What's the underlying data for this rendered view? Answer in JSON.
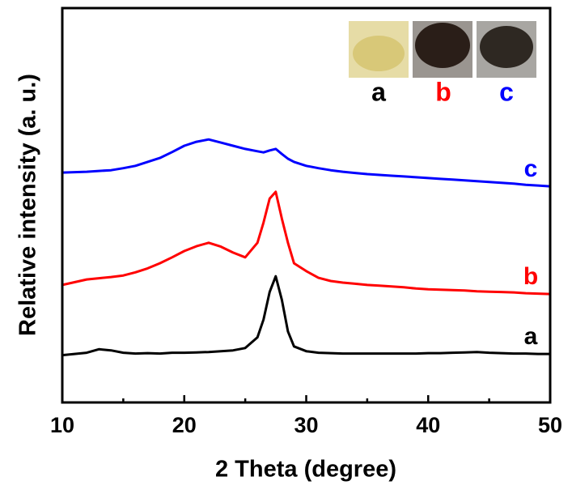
{
  "chart_data": {
    "type": "line",
    "xlabel": "2 Theta (degree)",
    "ylabel": "Relative intensity (a. u.)",
    "x": [
      10,
      11,
      12,
      13,
      14,
      15,
      16,
      17,
      18,
      19,
      20,
      21,
      22,
      23,
      24,
      25,
      26,
      26.5,
      27,
      27.5,
      28,
      28.5,
      29,
      30,
      31,
      32,
      33,
      34,
      35,
      36,
      37,
      38,
      39,
      40,
      41,
      42,
      43,
      44,
      45,
      46,
      47,
      48,
      49,
      50
    ],
    "series": [
      {
        "name": "a",
        "color": "#000000",
        "values": [
          12.0,
          12.3,
          12.6,
          13.5,
          13.2,
          12.6,
          12.4,
          12.5,
          12.4,
          12.6,
          12.6,
          12.7,
          12.8,
          13.0,
          13.2,
          13.8,
          16.5,
          21,
          28,
          32,
          26,
          18,
          14.2,
          13.0,
          12.6,
          12.5,
          12.4,
          12.4,
          12.4,
          12.4,
          12.4,
          12.4,
          12.4,
          12.5,
          12.5,
          12.6,
          12.7,
          12.8,
          12.6,
          12.5,
          12.4,
          12.4,
          12.3,
          12.3
        ]
      },
      {
        "name": "b",
        "color": "#ff0000",
        "values": [
          29.8,
          30.5,
          31.2,
          31.5,
          31.8,
          32.2,
          33.0,
          34.0,
          35.3,
          36.8,
          38.4,
          39.6,
          40.5,
          39.5,
          38.0,
          36.8,
          40.5,
          45.6,
          51.7,
          53.4,
          46.6,
          40.5,
          35.3,
          33.3,
          31.6,
          30.8,
          30.4,
          30.1,
          29.8,
          29.6,
          29.4,
          29.2,
          28.9,
          28.7,
          28.6,
          28.5,
          28.4,
          28.2,
          28.1,
          28.0,
          27.9,
          27.7,
          27.6,
          27.5
        ]
      },
      {
        "name": "c",
        "color": "#0000ff",
        "values": [
          58.3,
          58.4,
          58.5,
          58.7,
          58.9,
          59.4,
          60.0,
          61.0,
          62.0,
          63.5,
          65.1,
          66.1,
          66.7,
          65.9,
          65.1,
          64.3,
          63.7,
          63.4,
          63.9,
          64.3,
          63.0,
          61.8,
          61.0,
          60.0,
          59.4,
          58.9,
          58.5,
          58.2,
          57.9,
          57.7,
          57.5,
          57.3,
          57.1,
          56.9,
          56.7,
          56.5,
          56.3,
          56.1,
          55.9,
          55.7,
          55.5,
          55.2,
          55.0,
          54.8
        ]
      }
    ],
    "xlim": [
      10,
      50
    ],
    "xticks": [
      10,
      20,
      30,
      40,
      50
    ],
    "ylim": [
      0,
      100
    ]
  }
}
